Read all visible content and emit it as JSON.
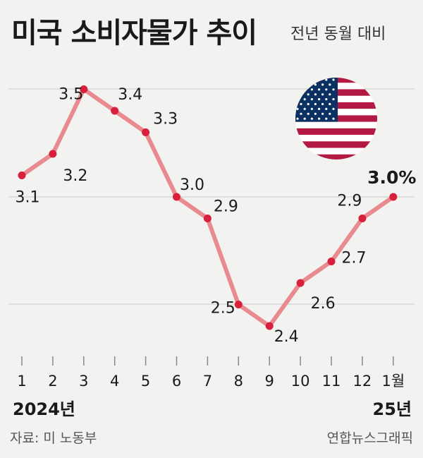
{
  "header": {
    "title": "미국 소비자물가 추이",
    "subtitle": "전년 동월 대비"
  },
  "footer": {
    "year_start": "2024년",
    "year_end": "25년",
    "source": "자료: 미 노동부",
    "credit": "연합뉴스그래픽"
  },
  "flag_icon": "us-flag-icon",
  "colors": {
    "line": "#e88a8f",
    "point": "#d81f3c",
    "grid": "#c9c9c9",
    "flag_red": "#b31942",
    "flag_blue": "#0a3161"
  },
  "chart_data": {
    "type": "line",
    "categories": [
      "1",
      "2",
      "3",
      "4",
      "5",
      "6",
      "7",
      "8",
      "9",
      "10",
      "11",
      "12",
      "1월"
    ],
    "values": [
      3.1,
      3.2,
      3.5,
      3.4,
      3.3,
      3.0,
      2.9,
      2.5,
      2.4,
      2.6,
      2.7,
      2.9,
      3.0
    ],
    "data_labels": [
      "3.1",
      "3.2",
      "3.5",
      "3.4",
      "3.3",
      "3.0",
      "2.9",
      "2.5",
      "2.4",
      "2.6",
      "2.7",
      "2.9",
      "3.0%"
    ],
    "title": "미국 소비자물가 추이",
    "subtitle": "전년 동월 대비",
    "ylim": [
      2.3,
      3.6
    ],
    "grid": true
  }
}
